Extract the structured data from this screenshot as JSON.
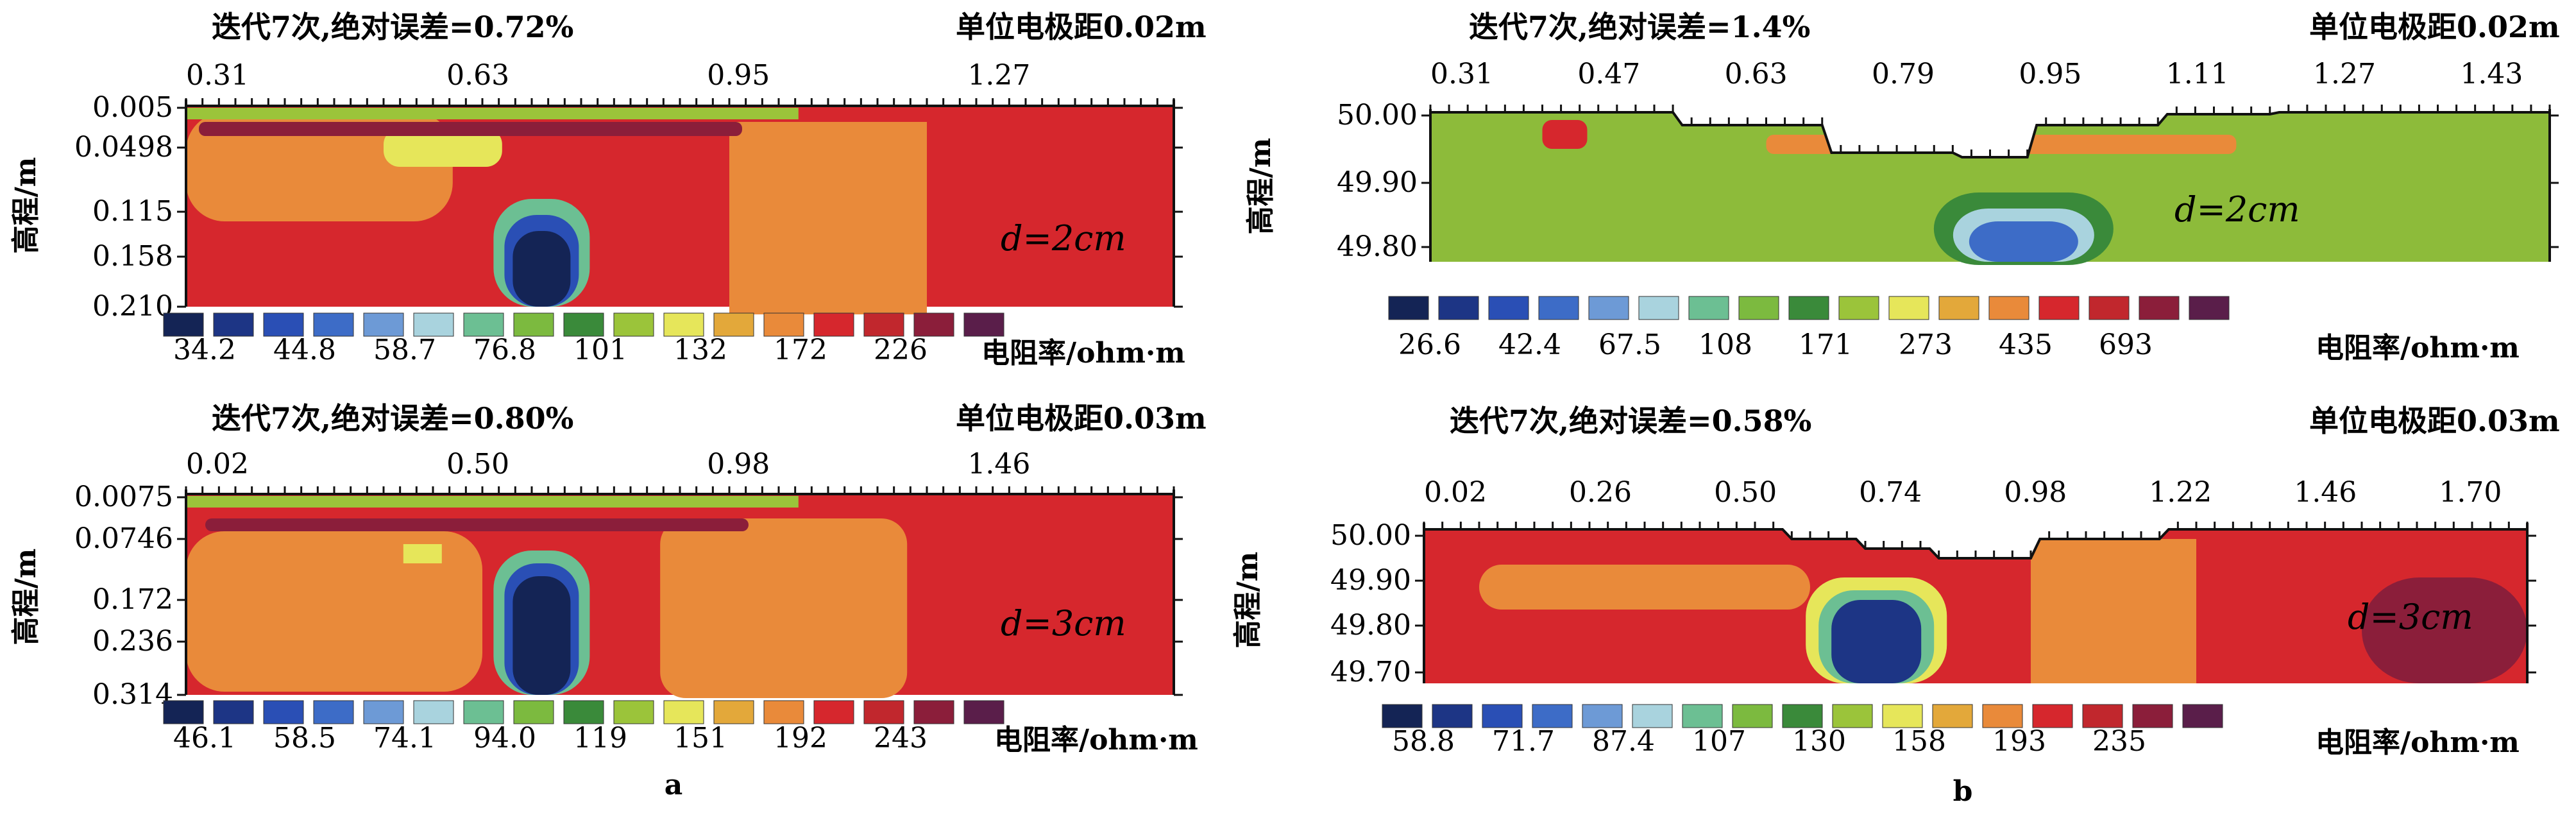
{
  "figure": {
    "sub_labels": [
      "a",
      "b"
    ]
  },
  "chart_data": [
    {
      "type": "heatmap",
      "title": "迭代7次,绝对误差=0.72%",
      "unit_spacing": "单位电极距0.02m",
      "x_ticks": [
        "0.31",
        "0.63",
        "0.95",
        "1.27"
      ],
      "y_ticks": [
        "0.005",
        "0.0498",
        "0.115",
        "0.158",
        "0.210"
      ],
      "ylabel": "高程/m",
      "annotation": "d=2cm",
      "legend_label": "电阻率/ohm·m",
      "legend_values": [
        "34.2",
        "44.8",
        "58.7",
        "76.8",
        "101",
        "132",
        "172",
        "226"
      ],
      "background_color": "#d6272d",
      "colors": [
        "#142455",
        "#1d3585",
        "#2a4fb5",
        "#3d6cc7",
        "#6d9ad6",
        "#a9d3de",
        "#6cbf93",
        "#7cba3f",
        "#3a8a3a",
        "#9bc43a",
        "#e6e65a",
        "#e3a83a",
        "#e98a3a",
        "#d6272d",
        "#c1272d",
        "#8b1e3a",
        "#5a1e4a"
      ]
    },
    {
      "type": "heatmap",
      "title": "迭代7次,绝对误差=1.4%",
      "unit_spacing": "单位电极距0.02m",
      "x_ticks": [
        "0.31",
        "0.47",
        "0.63",
        "0.79",
        "0.95",
        "1.11",
        "1.27",
        "1.43"
      ],
      "y_ticks": [
        "50.00",
        "49.90",
        "49.80"
      ],
      "ylabel": "高程/m",
      "annotation": "d=2cm",
      "legend_label": "电阻率/ohm·m",
      "legend_values": [
        "26.6",
        "42.4",
        "67.5",
        "108",
        "171",
        "273",
        "435",
        "693"
      ],
      "background_color": "#8dbb3a",
      "colors": [
        "#142455",
        "#1d3585",
        "#2a4fb5",
        "#3d6cc7",
        "#6d9ad6",
        "#a9d3de",
        "#6cbf93",
        "#7cba3f",
        "#3a8a3a",
        "#9bc43a",
        "#e6e65a",
        "#e3a83a",
        "#e98a3a",
        "#d6272d",
        "#c1272d",
        "#8b1e3a",
        "#5a1e4a"
      ]
    },
    {
      "type": "heatmap",
      "title": "迭代7次,绝对误差=0.80%",
      "unit_spacing": "单位电极距0.03m",
      "x_ticks": [
        "0.02",
        "0.50",
        "0.98",
        "1.46"
      ],
      "y_ticks": [
        "0.0075",
        "0.0746",
        "0.172",
        "0.236",
        "0.314"
      ],
      "ylabel": "高程/m",
      "annotation": "d=3cm",
      "legend_label": "电阻率/ohm·m",
      "legend_values": [
        "46.1",
        "58.5",
        "74.1",
        "94.0",
        "119",
        "151",
        "192",
        "243"
      ],
      "background_color": "#d6272d",
      "colors": [
        "#142455",
        "#1d3585",
        "#2a4fb5",
        "#3d6cc7",
        "#6d9ad6",
        "#a9d3de",
        "#6cbf93",
        "#7cba3f",
        "#3a8a3a",
        "#9bc43a",
        "#e6e65a",
        "#e3a83a",
        "#e98a3a",
        "#d6272d",
        "#c1272d",
        "#8b1e3a",
        "#5a1e4a"
      ]
    },
    {
      "type": "heatmap",
      "title": "迭代7次,绝对误差=0.58%",
      "unit_spacing": "单位电极距0.03m",
      "x_ticks": [
        "0.02",
        "0.26",
        "0.50",
        "0.74",
        "0.98",
        "1.22",
        "1.46",
        "1.70"
      ],
      "y_ticks": [
        "50.00",
        "49.90",
        "49.80",
        "49.70"
      ],
      "ylabel": "高程/m",
      "annotation": "d=3cm",
      "legend_label": "电阻率/ohm·m",
      "legend_values": [
        "58.8",
        "71.7",
        "87.4",
        "107",
        "130",
        "158",
        "193",
        "235"
      ],
      "background_color": "#d6272d",
      "colors": [
        "#142455",
        "#1d3585",
        "#2a4fb5",
        "#3d6cc7",
        "#6d9ad6",
        "#a9d3de",
        "#6cbf93",
        "#7cba3f",
        "#3a8a3a",
        "#9bc43a",
        "#e6e65a",
        "#e3a83a",
        "#e98a3a",
        "#d6272d",
        "#c1272d",
        "#8b1e3a",
        "#5a1e4a"
      ]
    }
  ]
}
